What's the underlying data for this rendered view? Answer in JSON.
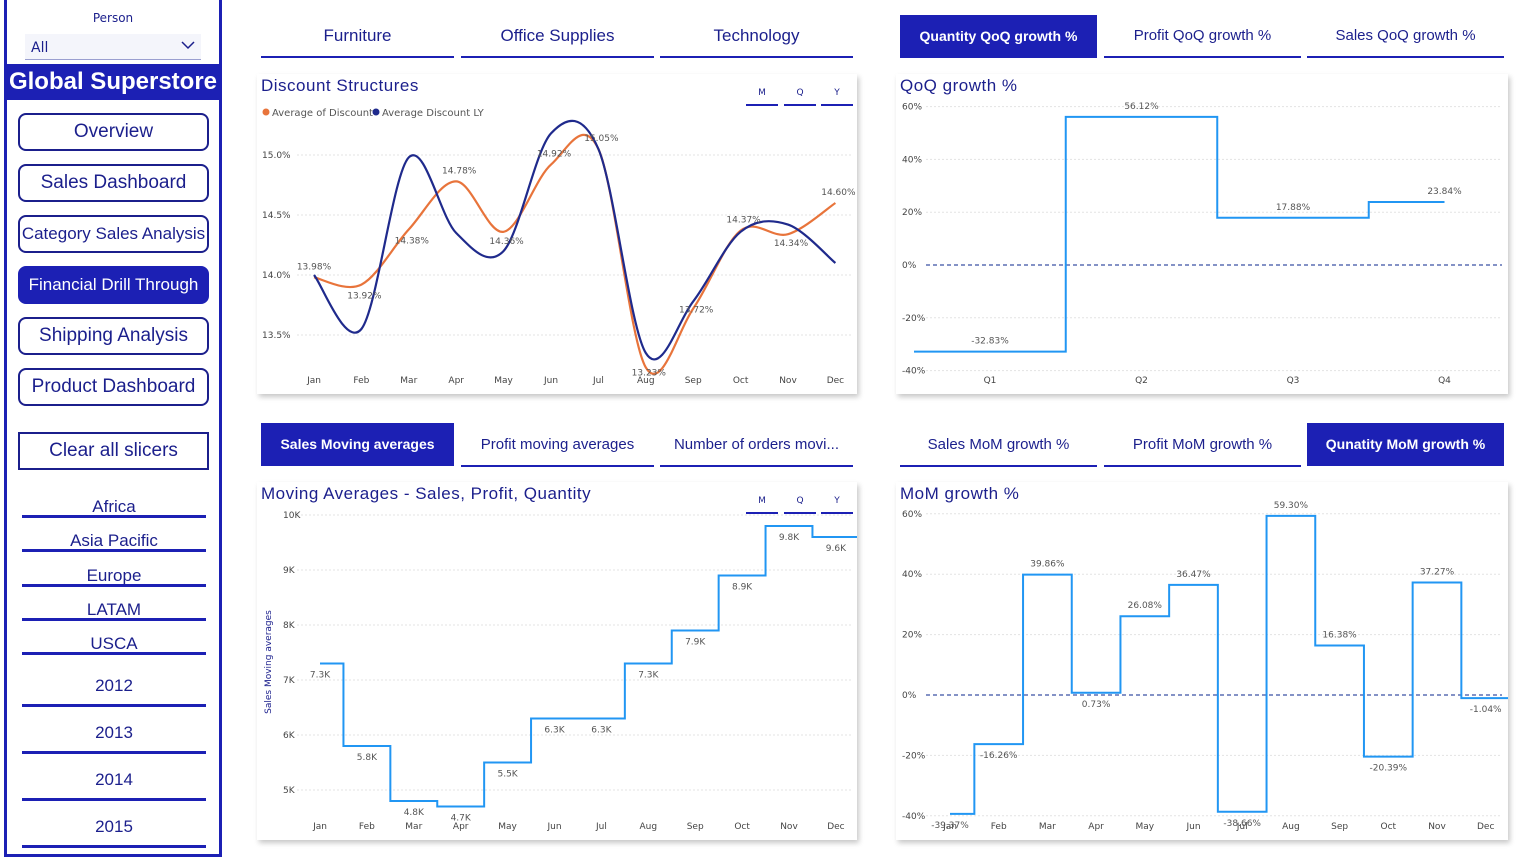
{
  "sidebar": {
    "person_label": "Person",
    "person_value": "All",
    "brand": "Global Superstore",
    "nav": [
      "Overview",
      "Sales Dashboard",
      "Category Sales Analysis",
      "Financial Drill Through",
      "Shipping Analysis",
      "Product Dashboard"
    ],
    "active_nav": "Financial Drill Through",
    "clear": "Clear all slicers",
    "regions": [
      "Africa",
      "Asia Pacific",
      "Europe",
      "LATAM",
      "USCA"
    ],
    "years": [
      "2012",
      "2013",
      "2014",
      "2015"
    ]
  },
  "category_tabs": [
    "Furniture",
    "Office Supplies",
    "Technology"
  ],
  "qoq_tabs": [
    "Quantity QoQ growth %",
    "Profit QoQ growth %",
    "Sales QoQ growth %"
  ],
  "ma_tabs": [
    "Sales Moving averages",
    "Profit moving averages",
    "Number of orders movi..."
  ],
  "mom_tabs": [
    "Sales MoM growth %",
    "Profit MoM growth %",
    "Qunatity MoM growth %"
  ],
  "mqy": [
    "M",
    "Q",
    "Y"
  ],
  "discount_card": {
    "title": "Discount Structures"
  },
  "qoq_card": {
    "title": "QoQ growth %"
  },
  "ma_card": {
    "title": "Moving Averages - Sales, Profit, Quantity"
  },
  "mom_card": {
    "title": "MoM growth %"
  },
  "colors": {
    "accent": "#1c20b4",
    "orange": "#e8743b",
    "navy": "#1f2a8c",
    "step": "#2196f3"
  },
  "chart_data": [
    {
      "type": "line",
      "title": "Discount Structures",
      "x": [
        "Jan",
        "Feb",
        "Mar",
        "Apr",
        "May",
        "Jun",
        "Jul",
        "Aug",
        "Sep",
        "Oct",
        "Nov",
        "Dec"
      ],
      "ylim": [
        13.2,
        15.3
      ],
      "yticks": [
        "13.5%",
        "14.0%",
        "14.5%",
        "15.0%"
      ],
      "series": [
        {
          "name": "Average of Discount",
          "color": "#e8743b",
          "values": [
            13.98,
            13.92,
            14.38,
            14.78,
            14.36,
            14.92,
            15.05,
            13.23,
            13.72,
            14.37,
            14.34,
            14.6
          ],
          "labels": [
            "13.98%",
            "13.92%",
            "14.38%",
            "14.78%",
            "14.36%",
            "14.92%",
            "15.05%",
            "13.23%",
            "13.72%",
            "14.37%",
            "14.34%",
            "14.60%"
          ]
        },
        {
          "name": "Average Discount LY",
          "color": "#1f2a8c",
          "values": [
            14.0,
            13.55,
            14.98,
            14.35,
            14.2,
            15.18,
            15.05,
            13.35,
            13.78,
            14.36,
            14.42,
            14.1
          ]
        }
      ]
    },
    {
      "type": "line",
      "title": "QoQ growth %",
      "x": [
        "Q1",
        "Q2",
        "Q3",
        "Q4"
      ],
      "ylim": [
        -40,
        60
      ],
      "yticks": [
        "-40%",
        "-20%",
        "0%",
        "20%",
        "40%",
        "60%"
      ],
      "values": [
        -32.83,
        56.12,
        17.88,
        23.84
      ],
      "labels": [
        "-32.83%",
        "56.12%",
        "17.88%",
        "23.84%"
      ]
    },
    {
      "type": "line",
      "title": "Moving Averages - Sales, Profit, Quantity",
      "ylabel": "Sales Moving averages",
      "x": [
        "Jan",
        "Feb",
        "Mar",
        "Apr",
        "May",
        "Jun",
        "Jul",
        "Aug",
        "Sep",
        "Oct",
        "Nov",
        "Dec"
      ],
      "ylim": [
        4.7,
        10
      ],
      "yticks": [
        "5K",
        "6K",
        "7K",
        "8K",
        "9K",
        "10K"
      ],
      "values": [
        7.3,
        5.8,
        4.8,
        4.7,
        5.5,
        6.3,
        6.3,
        7.3,
        7.9,
        8.9,
        9.8,
        9.6
      ],
      "labels": [
        "7.3K",
        "5.8K",
        "4.8K",
        "4.7K",
        "5.5K",
        "6.3K",
        "6.3K",
        "7.3K",
        "7.9K",
        "8.9K",
        "9.8K",
        "9.6K"
      ]
    },
    {
      "type": "line",
      "title": "MoM growth %",
      "x": [
        "Jan",
        "Feb",
        "Mar",
        "Apr",
        "May",
        "Jun",
        "Jul",
        "Aug",
        "Sep",
        "Oct",
        "Nov",
        "Dec"
      ],
      "ylim": [
        -40,
        60
      ],
      "yticks": [
        "-40%",
        "-20%",
        "0%",
        "20%",
        "40%",
        "60%"
      ],
      "values": [
        -39.37,
        -16.26,
        39.86,
        0.73,
        26.08,
        36.47,
        -38.66,
        59.3,
        16.38,
        -20.39,
        37.27,
        -1.04
      ],
      "labels": [
        "-39.37%",
        "-16.26%",
        "39.86%",
        "0.73%",
        "26.08%",
        "36.47%",
        "-38.66%",
        "59.30%",
        "16.38%",
        "-20.39%",
        "37.27%",
        "-1.04%"
      ]
    }
  ]
}
